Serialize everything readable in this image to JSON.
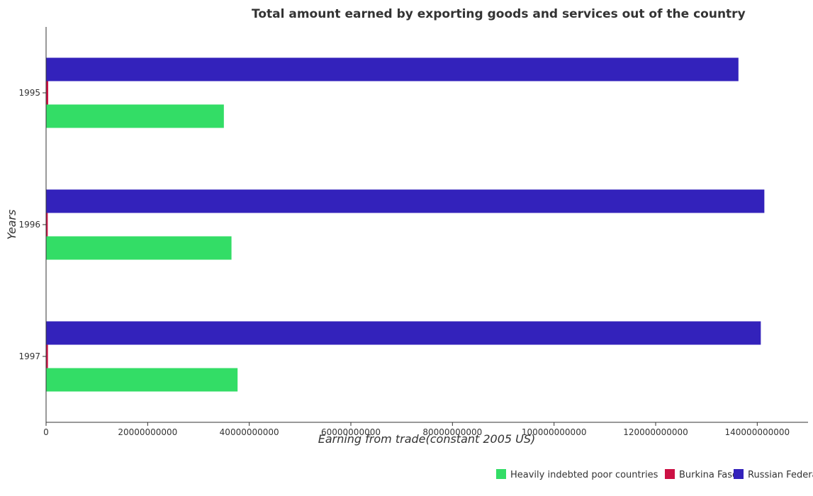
{
  "chart_data": {
    "type": "bar",
    "orientation": "horizontal",
    "title": "Total amount earned by exporting goods and services out of the country",
    "xlabel": "Earning from trade(constant 2005 US)",
    "ylabel": "Years",
    "categories": [
      "1995",
      "1996",
      "1997"
    ],
    "xlim": [
      0,
      150000000000
    ],
    "xticks": [
      0,
      20000000000,
      40000000000,
      60000000000,
      80000000000,
      100000000000,
      120000000000,
      140000000000
    ],
    "xtick_labels": [
      "0",
      "20000000000",
      "40000000000",
      "60000000000",
      "80000000000",
      "100000000000",
      "120000000000",
      "140000000000"
    ],
    "grid": false,
    "legend_position": "bottom-right",
    "series": [
      {
        "name": "Heavily indebted poor countries",
        "color": "#33dd66",
        "values": [
          35000000000,
          36500000000,
          37700000000
        ]
      },
      {
        "name": "Burkina Faso",
        "color": "#cc1144",
        "values": [
          420000000,
          330000000,
          370000000
        ]
      },
      {
        "name": "Russian Federation",
        "color": "#3322bb",
        "values": [
          136300000000,
          141400000000,
          140700000000
        ]
      }
    ]
  }
}
